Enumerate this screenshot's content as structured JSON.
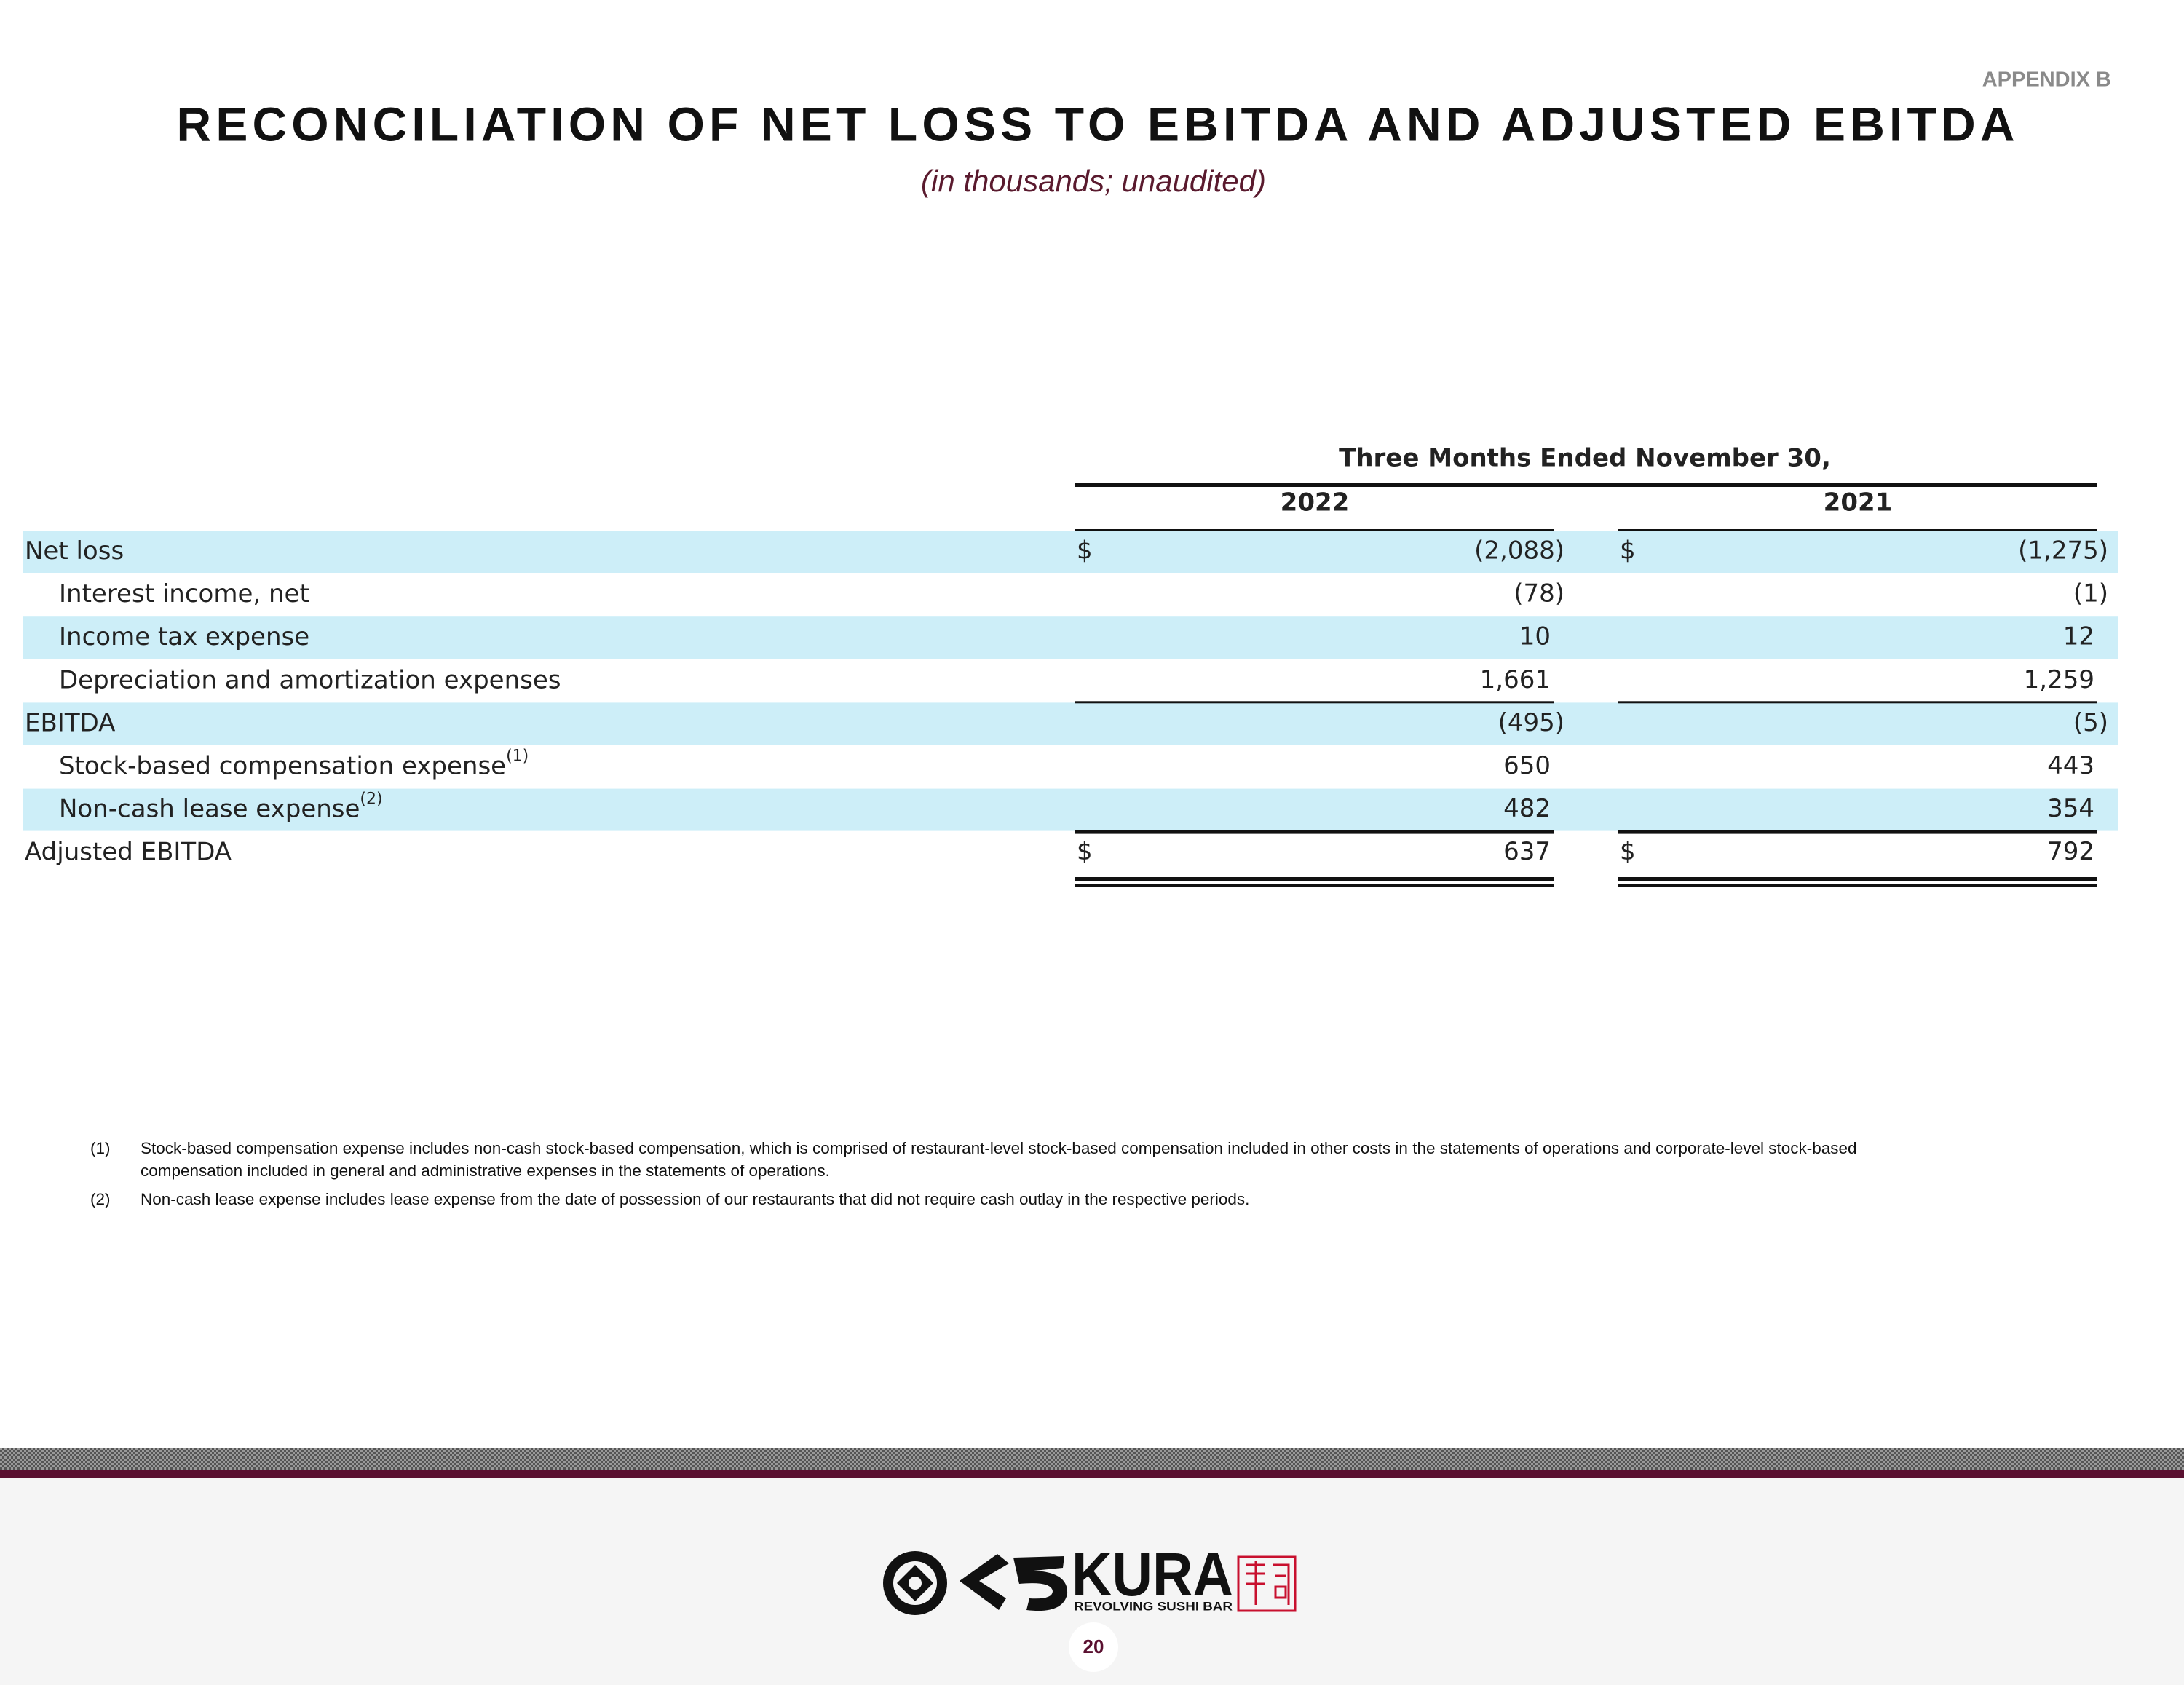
{
  "appendix": "APPENDIX B",
  "title": "RECONCILIATION OF NET LOSS TO EBITDA AND ADJUSTED EBITDA",
  "subtitle": "(in thousands; unaudited)",
  "table": {
    "period": "Three Months Ended November 30,",
    "columns": [
      "2022",
      "2021"
    ],
    "rows": [
      {
        "label": "Net loss",
        "currency": "$",
        "values": [
          "(2,088)",
          "(1,275)"
        ]
      },
      {
        "label": "Interest income, net",
        "values": [
          "(78)",
          "(1)"
        ]
      },
      {
        "label": "Income tax expense",
        "values": [
          "10",
          "12"
        ]
      },
      {
        "label": "Depreciation and amortization expenses",
        "values": [
          "1,661",
          "1,259"
        ]
      },
      {
        "label": "EBITDA",
        "values": [
          "(495)",
          "(5)"
        ]
      },
      {
        "label": "Stock-based compensation expense",
        "note": "(1)",
        "values": [
          "650",
          "443"
        ]
      },
      {
        "label": "Non-cash lease expense",
        "note": "(2)",
        "values": [
          "482",
          "354"
        ]
      },
      {
        "label": "Adjusted EBITDA",
        "currency": "$",
        "values": [
          "637",
          "792"
        ]
      }
    ]
  },
  "footnotes": [
    {
      "marker": "(1)",
      "text": "Stock-based compensation expense includes non-cash stock-based compensation, which is comprised of restaurant-level stock-based compensation included in other costs in the statements of operations and corporate-level stock-based compensation included in general and administrative expenses in the statements of operations."
    },
    {
      "marker": "(2)",
      "text": "Non-cash lease expense includes lease expense from the date of possession of our restaurants that did not require cash outlay in the respective periods."
    }
  ],
  "footer": {
    "brand": "KURA",
    "tagline": "REVOLVING SUSHI BAR",
    "page": "20"
  }
}
